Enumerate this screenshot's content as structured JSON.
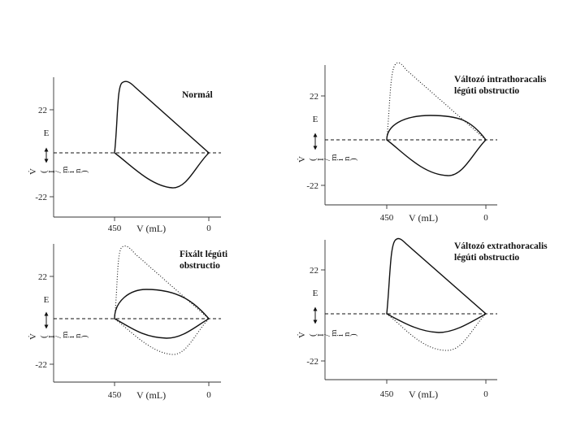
{
  "figure": {
    "panels": [
      {
        "title_lines": [
          "Normál"
        ],
        "y_ticks": [
          "22",
          "-22"
        ],
        "x_ticks": [
          "450",
          "0"
        ],
        "x_label": "V (mL)",
        "y_label_top": "E",
        "y_label_bottom": [
          "V̇",
          "(",
          "I",
          "/",
          "m",
          "i",
          "n",
          ")"
        ]
      },
      {
        "title_lines": [
          "Változó intrathoracalis",
          "légúti obstructio"
        ],
        "y_ticks": [
          "22",
          "-22"
        ],
        "x_ticks": [
          "450",
          "0"
        ],
        "x_label": "V (mL)",
        "y_label_top": "E",
        "y_label_bottom": [
          "V̇",
          "(",
          "I",
          "/",
          "m",
          "i",
          "n",
          ")"
        ]
      },
      {
        "title_lines": [
          "Fixált légúti",
          "obstructio"
        ],
        "y_ticks": [
          "22",
          "-22"
        ],
        "x_ticks": [
          "450",
          "0"
        ],
        "x_label": "V (mL)",
        "y_label_top": "E",
        "y_label_bottom": [
          "V̇",
          "(",
          "I",
          "/",
          "m",
          "i",
          "n",
          ")"
        ]
      },
      {
        "title_lines": [
          "Változó extrathoracalis",
          "légúti obstructio"
        ],
        "y_ticks": [
          "22",
          "-22"
        ],
        "x_ticks": [
          "450",
          "0"
        ],
        "x_label": "V (mL)",
        "y_label_top": "E",
        "y_label_bottom": [
          "V̇",
          "(",
          "I",
          "/",
          "m",
          "i",
          "n",
          ")"
        ]
      }
    ]
  }
}
